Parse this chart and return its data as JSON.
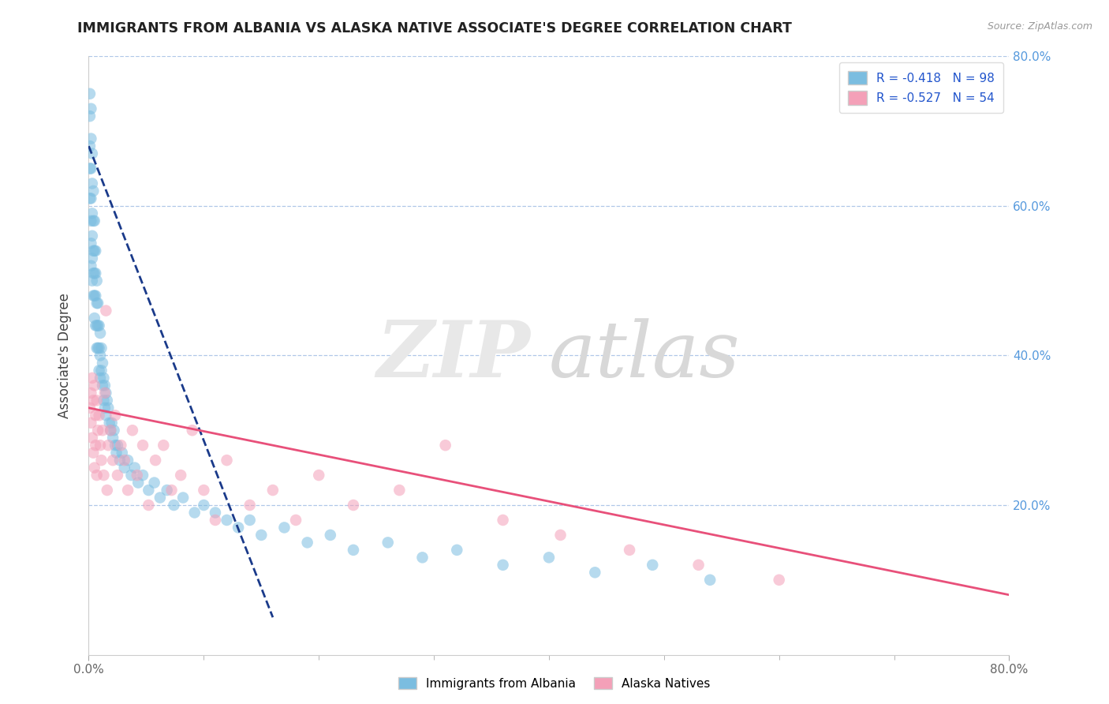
{
  "title": "IMMIGRANTS FROM ALBANIA VS ALASKA NATIVE ASSOCIATE'S DEGREE CORRELATION CHART",
  "source_text": "Source: ZipAtlas.com",
  "ylabel": "Associate's Degree",
  "legend_label1": "Immigrants from Albania",
  "legend_label2": "Alaska Natives",
  "blue_color": "#7bbde0",
  "pink_color": "#f4a0b8",
  "blue_line_color": "#1a3a8a",
  "blue_line_dash": "dashed",
  "pink_line_color": "#e8507a",
  "xlim": [
    0,
    0.8
  ],
  "ylim": [
    0,
    0.8
  ],
  "blue_scatter_x": [
    0.001,
    0.001,
    0.001,
    0.001,
    0.001,
    0.002,
    0.002,
    0.002,
    0.002,
    0.002,
    0.002,
    0.002,
    0.003,
    0.003,
    0.003,
    0.003,
    0.003,
    0.003,
    0.004,
    0.004,
    0.004,
    0.004,
    0.004,
    0.005,
    0.005,
    0.005,
    0.005,
    0.005,
    0.006,
    0.006,
    0.006,
    0.006,
    0.007,
    0.007,
    0.007,
    0.007,
    0.008,
    0.008,
    0.008,
    0.009,
    0.009,
    0.009,
    0.01,
    0.01,
    0.01,
    0.011,
    0.011,
    0.012,
    0.012,
    0.013,
    0.013,
    0.014,
    0.014,
    0.015,
    0.015,
    0.016,
    0.017,
    0.018,
    0.019,
    0.02,
    0.021,
    0.022,
    0.023,
    0.024,
    0.025,
    0.027,
    0.029,
    0.031,
    0.034,
    0.037,
    0.04,
    0.043,
    0.047,
    0.052,
    0.057,
    0.062,
    0.068,
    0.074,
    0.082,
    0.092,
    0.1,
    0.11,
    0.12,
    0.13,
    0.14,
    0.15,
    0.17,
    0.19,
    0.21,
    0.23,
    0.26,
    0.29,
    0.32,
    0.36,
    0.4,
    0.44,
    0.49,
    0.54
  ],
  "blue_scatter_y": [
    0.75,
    0.72,
    0.68,
    0.65,
    0.61,
    0.73,
    0.69,
    0.65,
    0.61,
    0.58,
    0.55,
    0.52,
    0.67,
    0.63,
    0.59,
    0.56,
    0.53,
    0.5,
    0.62,
    0.58,
    0.54,
    0.51,
    0.48,
    0.58,
    0.54,
    0.51,
    0.48,
    0.45,
    0.54,
    0.51,
    0.48,
    0.44,
    0.5,
    0.47,
    0.44,
    0.41,
    0.47,
    0.44,
    0.41,
    0.44,
    0.41,
    0.38,
    0.43,
    0.4,
    0.37,
    0.41,
    0.38,
    0.39,
    0.36,
    0.37,
    0.34,
    0.36,
    0.33,
    0.35,
    0.32,
    0.34,
    0.33,
    0.31,
    0.3,
    0.31,
    0.29,
    0.3,
    0.28,
    0.27,
    0.28,
    0.26,
    0.27,
    0.25,
    0.26,
    0.24,
    0.25,
    0.23,
    0.24,
    0.22,
    0.23,
    0.21,
    0.22,
    0.2,
    0.21,
    0.19,
    0.2,
    0.19,
    0.18,
    0.17,
    0.18,
    0.16,
    0.17,
    0.15,
    0.16,
    0.14,
    0.15,
    0.13,
    0.14,
    0.12,
    0.13,
    0.11,
    0.12,
    0.1
  ],
  "pink_scatter_x": [
    0.001,
    0.002,
    0.002,
    0.003,
    0.003,
    0.004,
    0.004,
    0.005,
    0.005,
    0.006,
    0.006,
    0.007,
    0.007,
    0.008,
    0.009,
    0.01,
    0.011,
    0.012,
    0.013,
    0.014,
    0.015,
    0.016,
    0.017,
    0.019,
    0.021,
    0.023,
    0.025,
    0.028,
    0.031,
    0.034,
    0.038,
    0.042,
    0.047,
    0.052,
    0.058,
    0.065,
    0.072,
    0.08,
    0.09,
    0.1,
    0.11,
    0.12,
    0.14,
    0.16,
    0.18,
    0.2,
    0.23,
    0.27,
    0.31,
    0.36,
    0.41,
    0.47,
    0.53,
    0.6
  ],
  "pink_scatter_y": [
    0.33,
    0.35,
    0.31,
    0.37,
    0.29,
    0.34,
    0.27,
    0.36,
    0.25,
    0.32,
    0.28,
    0.34,
    0.24,
    0.3,
    0.32,
    0.28,
    0.26,
    0.3,
    0.24,
    0.35,
    0.46,
    0.22,
    0.28,
    0.3,
    0.26,
    0.32,
    0.24,
    0.28,
    0.26,
    0.22,
    0.3,
    0.24,
    0.28,
    0.2,
    0.26,
    0.28,
    0.22,
    0.24,
    0.3,
    0.22,
    0.18,
    0.26,
    0.2,
    0.22,
    0.18,
    0.24,
    0.2,
    0.22,
    0.28,
    0.18,
    0.16,
    0.14,
    0.12,
    0.1
  ],
  "blue_line_x": [
    0.0,
    0.16
  ],
  "blue_line_y": [
    0.68,
    0.05
  ],
  "pink_line_x": [
    0.0,
    0.8
  ],
  "pink_line_y": [
    0.33,
    0.08
  ]
}
